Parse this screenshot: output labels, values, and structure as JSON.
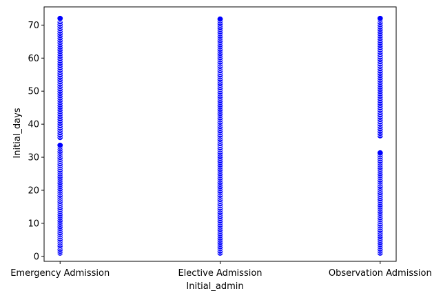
{
  "chart_data": {
    "type": "scatter",
    "title": "",
    "xlabel": "Initial_admin",
    "ylabel": "Initial_days",
    "categories": [
      "Emergency Admission",
      "Elective Admission",
      "Observation Admission"
    ],
    "ylim": [
      -1.5,
      75.5
    ],
    "yticks": [
      0,
      10,
      20,
      30,
      40,
      50,
      60,
      70
    ],
    "grid": false,
    "legend": "none",
    "marker_color": "#0000ff",
    "marker_edge_color": "#ffffff",
    "series": [
      {
        "category": "Emergency Admission",
        "values": [
          1.0,
          1.5,
          2.1,
          2.8,
          3.3,
          4.0,
          4.6,
          5.2,
          5.9,
          6.5,
          7.1,
          7.8,
          8.4,
          9.0,
          9.7,
          10.3,
          10.9,
          11.6,
          12.2,
          12.8,
          13.5,
          14.1,
          14.7,
          15.4,
          16.0,
          16.6,
          17.3,
          17.9,
          18.5,
          19.2,
          19.8,
          20.4,
          21.1,
          21.7,
          22.3,
          23.0,
          23.6,
          24.2,
          24.9,
          25.5,
          26.1,
          26.8,
          27.4,
          28.0,
          28.7,
          29.3,
          29.9,
          30.6,
          31.2,
          31.8,
          32.5,
          33.1,
          33.6,
          36.0,
          36.7,
          37.4,
          38.1,
          38.8,
          39.5,
          40.2,
          40.9,
          41.6,
          42.3,
          43.0,
          43.7,
          44.4,
          45.1,
          45.8,
          46.5,
          47.2,
          47.9,
          48.6,
          49.3,
          50.0,
          50.7,
          51.4,
          52.1,
          52.8,
          53.5,
          54.2,
          54.9,
          55.6,
          56.3,
          57.0,
          57.7,
          58.4,
          59.1,
          59.8,
          60.5,
          61.2,
          61.9,
          62.6,
          63.3,
          64.0,
          64.7,
          65.4,
          66.1,
          66.8,
          67.5,
          68.2,
          68.9,
          69.6,
          70.3,
          71.0,
          71.7,
          72.0
        ]
      },
      {
        "category": "Elective Admission",
        "values": [
          1.0,
          1.6,
          2.3,
          2.9,
          3.6,
          4.2,
          4.9,
          5.5,
          6.2,
          6.8,
          7.5,
          8.1,
          8.8,
          9.4,
          10.1,
          10.7,
          11.4,
          12.0,
          12.7,
          13.3,
          14.0,
          14.6,
          15.3,
          15.9,
          16.6,
          17.2,
          17.9,
          18.5,
          19.2,
          19.8,
          20.5,
          21.1,
          21.8,
          22.4,
          23.1,
          23.7,
          24.4,
          25.0,
          25.7,
          26.3,
          27.0,
          27.6,
          28.3,
          28.9,
          29.6,
          30.2,
          30.9,
          31.5,
          32.2,
          32.8,
          33.5,
          34.1,
          34.8,
          35.4,
          36.1,
          36.7,
          37.4,
          38.0,
          38.7,
          39.3,
          40.0,
          40.6,
          41.3,
          41.9,
          42.6,
          43.2,
          43.9,
          44.5,
          45.2,
          45.8,
          46.5,
          47.1,
          47.8,
          48.4,
          49.1,
          49.7,
          50.4,
          51.0,
          51.7,
          52.3,
          53.0,
          53.6,
          54.3,
          54.9,
          55.6,
          56.2,
          56.9,
          57.5,
          58.2,
          58.8,
          59.5,
          60.1,
          60.8,
          61.4,
          62.1,
          62.7,
          63.4,
          64.0,
          64.7,
          65.3,
          66.0,
          66.6,
          67.3,
          67.9,
          68.6,
          69.2,
          69.9,
          70.5,
          71.2,
          71.8
        ]
      },
      {
        "category": "Observation Admission",
        "values": [
          1.0,
          1.6,
          2.2,
          2.9,
          3.5,
          4.1,
          4.8,
          5.4,
          6.0,
          6.7,
          7.3,
          7.9,
          8.6,
          9.2,
          9.8,
          10.5,
          11.1,
          11.7,
          12.4,
          13.0,
          13.6,
          14.3,
          14.9,
          15.5,
          16.2,
          16.8,
          17.4,
          18.1,
          18.7,
          19.3,
          20.0,
          20.6,
          21.2,
          21.9,
          22.5,
          23.1,
          23.8,
          24.4,
          25.0,
          25.7,
          26.3,
          26.9,
          27.6,
          28.2,
          28.8,
          29.5,
          30.1,
          30.7,
          31.3,
          36.5,
          37.2,
          37.9,
          38.6,
          39.3,
          40.0,
          40.7,
          41.4,
          42.1,
          42.8,
          43.5,
          44.2,
          44.9,
          45.6,
          46.3,
          47.0,
          47.7,
          48.4,
          49.1,
          49.8,
          50.5,
          51.2,
          51.9,
          52.6,
          53.3,
          54.0,
          54.7,
          55.4,
          56.1,
          56.8,
          57.5,
          58.2,
          58.9,
          59.6,
          60.3,
          61.0,
          61.7,
          62.4,
          63.1,
          63.8,
          64.5,
          65.2,
          65.9,
          66.6,
          67.3,
          68.0,
          68.7,
          69.4,
          70.1,
          70.8,
          71.5,
          72.0
        ]
      }
    ]
  }
}
